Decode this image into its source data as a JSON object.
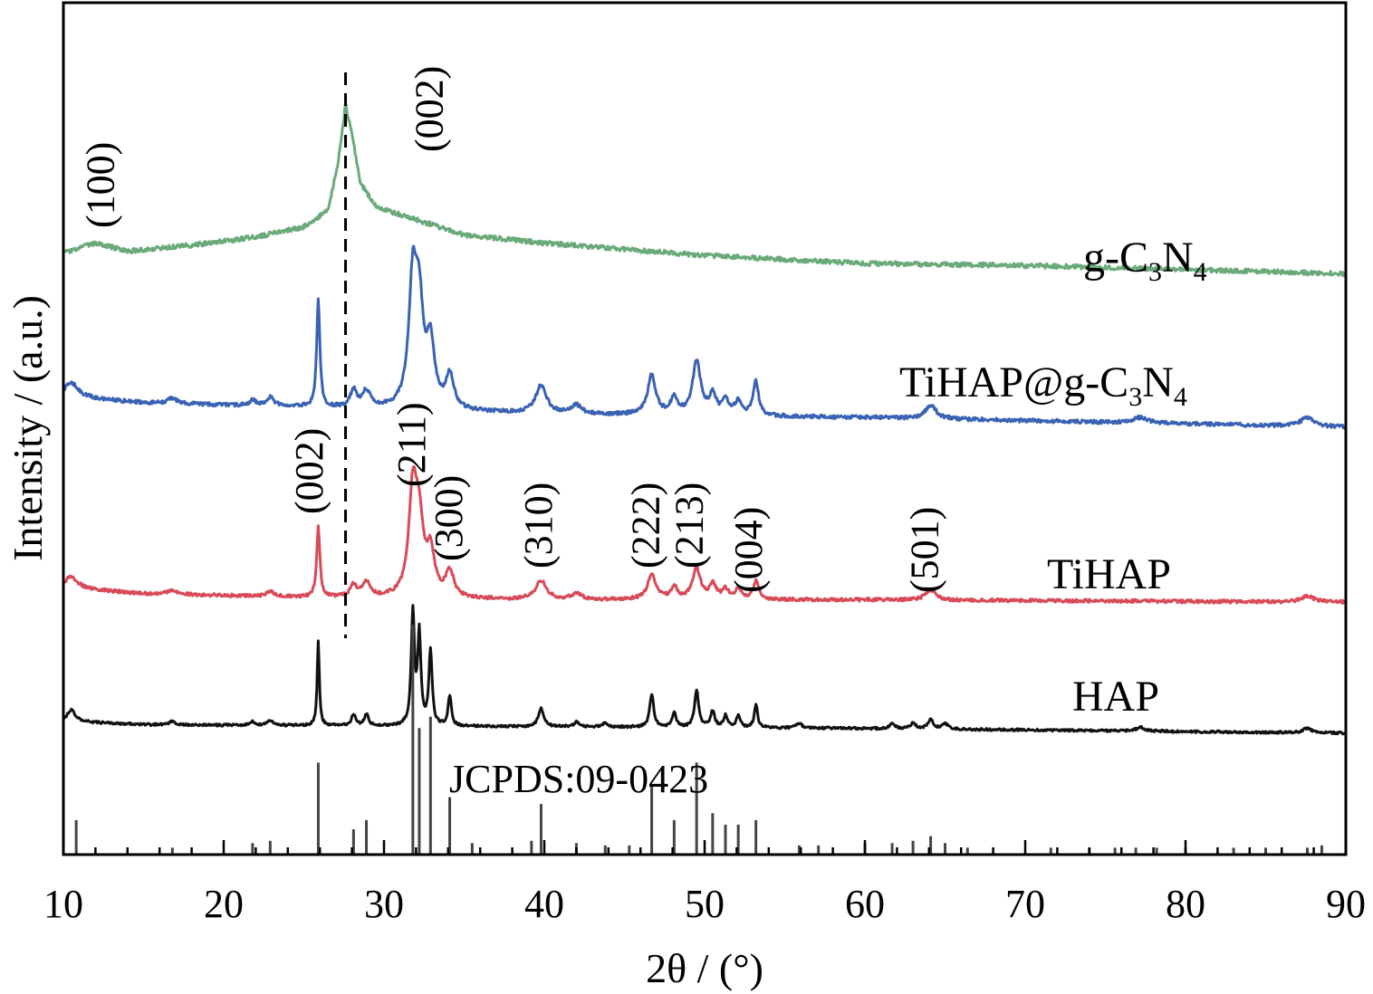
{
  "chart_data": {
    "type": "line",
    "xlabel": "2θ / (°)",
    "ylabel": "Intensity / (a.u.)",
    "xlim": [
      10,
      90
    ],
    "xticks": [
      "10",
      "20",
      "30",
      "40",
      "50",
      "60",
      "70",
      "80",
      "90"
    ],
    "grid": false,
    "dashed_reference_line_x": 27.6,
    "reference_pattern": {
      "label": "JCPDS:09-0423",
      "sticks": [
        {
          "x": 10.8,
          "h": 0.15
        },
        {
          "x": 16.8,
          "h": 0.03
        },
        {
          "x": 21.8,
          "h": 0.05
        },
        {
          "x": 22.9,
          "h": 0.06
        },
        {
          "x": 25.9,
          "h": 0.4
        },
        {
          "x": 28.1,
          "h": 0.11
        },
        {
          "x": 28.9,
          "h": 0.15
        },
        {
          "x": 31.8,
          "h": 1.0
        },
        {
          "x": 32.2,
          "h": 0.55
        },
        {
          "x": 32.9,
          "h": 0.6
        },
        {
          "x": 34.1,
          "h": 0.25
        },
        {
          "x": 35.5,
          "h": 0.05
        },
        {
          "x": 39.2,
          "h": 0.06
        },
        {
          "x": 39.8,
          "h": 0.22
        },
        {
          "x": 42.0,
          "h": 0.05
        },
        {
          "x": 43.8,
          "h": 0.04
        },
        {
          "x": 45.3,
          "h": 0.04
        },
        {
          "x": 46.7,
          "h": 0.3
        },
        {
          "x": 48.1,
          "h": 0.15
        },
        {
          "x": 49.5,
          "h": 0.4
        },
        {
          "x": 50.5,
          "h": 0.18
        },
        {
          "x": 51.3,
          "h": 0.13
        },
        {
          "x": 52.1,
          "h": 0.13
        },
        {
          "x": 53.2,
          "h": 0.15
        },
        {
          "x": 55.9,
          "h": 0.04
        },
        {
          "x": 57.1,
          "h": 0.04
        },
        {
          "x": 60.0,
          "h": 0.05
        },
        {
          "x": 61.7,
          "h": 0.05
        },
        {
          "x": 63.0,
          "h": 0.06
        },
        {
          "x": 64.1,
          "h": 0.08
        },
        {
          "x": 65.0,
          "h": 0.05
        },
        {
          "x": 66.4,
          "h": 0.03
        },
        {
          "x": 71.6,
          "h": 0.03
        },
        {
          "x": 74.0,
          "h": 0.03
        },
        {
          "x": 75.6,
          "h": 0.03
        },
        {
          "x": 76.9,
          "h": 0.03
        },
        {
          "x": 78.2,
          "h": 0.03
        },
        {
          "x": 80.0,
          "h": 0.03
        },
        {
          "x": 83.0,
          "h": 0.03
        },
        {
          "x": 85.0,
          "h": 0.03
        },
        {
          "x": 87.6,
          "h": 0.03
        },
        {
          "x": 88.5,
          "h": 0.04
        }
      ]
    },
    "series": [
      {
        "name": "g-C3N4",
        "label_main": "g-C",
        "label_sub1": "3",
        "label_mid": "N",
        "label_sub2": "4",
        "color": "#6aaa7a",
        "baseline": [
          [
            10,
            0.05
          ],
          [
            12,
            0.3
          ],
          [
            14,
            0.1
          ],
          [
            18,
            0.25
          ],
          [
            22,
            0.45
          ],
          [
            25,
            0.7
          ],
          [
            26.5,
            1.1
          ],
          [
            27.1,
            2.2
          ],
          [
            27.6,
            3.7
          ],
          [
            28.0,
            3.0
          ],
          [
            28.5,
            1.8
          ],
          [
            29.5,
            1.2
          ],
          [
            31,
            1.0
          ],
          [
            35,
            0.5
          ],
          [
            40,
            0.3
          ],
          [
            50,
            0.0
          ],
          [
            60,
            -0.2
          ],
          [
            70,
            -0.25
          ],
          [
            80,
            -0.35
          ],
          [
            90,
            -0.45
          ]
        ],
        "peaks": []
      },
      {
        "name": "TiHAP@g-C3N4",
        "label_main": "TiHAP@g-C",
        "label_sub1": "3",
        "label_mid": "N",
        "label_sub2": "4",
        "color": "#3a62b4",
        "baseline": [
          [
            10,
            0.2
          ],
          [
            15,
            0.08
          ],
          [
            25,
            0.0
          ],
          [
            40,
            -0.12
          ],
          [
            60,
            -0.18
          ],
          [
            90,
            -0.35
          ]
        ],
        "peaks": [
          [
            10.5,
            0.25,
            0.5
          ],
          [
            16.8,
            0.1,
            0.3
          ],
          [
            21.8,
            0.1,
            0.2
          ],
          [
            22.9,
            0.15,
            0.3
          ],
          [
            25.9,
            1.9,
            0.12
          ],
          [
            28.1,
            0.3,
            0.25
          ],
          [
            28.9,
            0.3,
            0.3
          ],
          [
            31.8,
            2.2,
            0.3
          ],
          [
            32.2,
            1.6,
            0.3
          ],
          [
            32.9,
            1.1,
            0.3
          ],
          [
            34.1,
            0.6,
            0.3
          ],
          [
            39.8,
            0.5,
            0.4
          ],
          [
            42.0,
            0.15,
            0.4
          ],
          [
            46.7,
            0.7,
            0.3
          ],
          [
            48.1,
            0.3,
            0.25
          ],
          [
            49.5,
            0.95,
            0.3
          ],
          [
            50.5,
            0.35,
            0.25
          ],
          [
            51.3,
            0.25,
            0.25
          ],
          [
            52.1,
            0.25,
            0.25
          ],
          [
            53.2,
            0.6,
            0.2
          ],
          [
            64.1,
            0.25,
            0.4
          ],
          [
            77.2,
            0.1,
            0.5
          ],
          [
            87.6,
            0.15,
            0.5
          ]
        ]
      },
      {
        "name": "TiHAP",
        "label_main": "TiHAP",
        "label_sub1": "",
        "label_mid": "",
        "label_sub2": "",
        "color": "#d84a58",
        "baseline": [
          [
            10,
            0.2
          ],
          [
            15,
            0.08
          ],
          [
            25,
            0.0
          ],
          [
            40,
            -0.05
          ],
          [
            60,
            -0.05
          ],
          [
            90,
            -0.1
          ]
        ],
        "peaks": [
          [
            10.5,
            0.25,
            0.5
          ],
          [
            16.8,
            0.1,
            0.3
          ],
          [
            22.9,
            0.12,
            0.3
          ],
          [
            25.9,
            1.5,
            0.12
          ],
          [
            28.1,
            0.25,
            0.25
          ],
          [
            28.9,
            0.3,
            0.3
          ],
          [
            31.8,
            2.2,
            0.3
          ],
          [
            32.2,
            1.4,
            0.3
          ],
          [
            32.9,
            0.9,
            0.3
          ],
          [
            34.1,
            0.55,
            0.3
          ],
          [
            39.8,
            0.4,
            0.4
          ],
          [
            42.0,
            0.12,
            0.4
          ],
          [
            46.7,
            0.55,
            0.3
          ],
          [
            48.1,
            0.25,
            0.25
          ],
          [
            49.5,
            0.65,
            0.3
          ],
          [
            50.5,
            0.3,
            0.25
          ],
          [
            51.3,
            0.2,
            0.25
          ],
          [
            52.1,
            0.2,
            0.25
          ],
          [
            53.2,
            0.4,
            0.2
          ],
          [
            64.1,
            0.2,
            0.4
          ],
          [
            87.6,
            0.12,
            0.5
          ]
        ]
      },
      {
        "name": "HAP",
        "label_main": "HAP",
        "label_sub1": "",
        "label_mid": "",
        "label_sub2": "",
        "color": "#111111",
        "baseline": [
          [
            10,
            0.1
          ],
          [
            15,
            0.03
          ],
          [
            30,
            0.0
          ],
          [
            60,
            -0.05
          ],
          [
            90,
            -0.15
          ]
        ],
        "peaks": [
          [
            10.5,
            0.25,
            0.3
          ],
          [
            16.8,
            0.08,
            0.2
          ],
          [
            21.8,
            0.08,
            0.15
          ],
          [
            22.9,
            0.1,
            0.2
          ],
          [
            25.9,
            1.8,
            0.08
          ],
          [
            28.1,
            0.25,
            0.15
          ],
          [
            28.9,
            0.25,
            0.15
          ],
          [
            31.8,
            2.4,
            0.12
          ],
          [
            32.2,
            1.9,
            0.12
          ],
          [
            32.9,
            1.6,
            0.12
          ],
          [
            34.1,
            0.65,
            0.12
          ],
          [
            39.8,
            0.4,
            0.2
          ],
          [
            42.0,
            0.1,
            0.2
          ],
          [
            43.8,
            0.08,
            0.2
          ],
          [
            46.7,
            0.7,
            0.15
          ],
          [
            48.1,
            0.3,
            0.15
          ],
          [
            49.5,
            0.8,
            0.15
          ],
          [
            50.5,
            0.35,
            0.15
          ],
          [
            51.3,
            0.25,
            0.15
          ],
          [
            52.1,
            0.25,
            0.15
          ],
          [
            53.2,
            0.5,
            0.12
          ],
          [
            55.9,
            0.1,
            0.2
          ],
          [
            61.7,
            0.1,
            0.2
          ],
          [
            63.0,
            0.12,
            0.2
          ],
          [
            64.1,
            0.2,
            0.2
          ],
          [
            65.0,
            0.12,
            0.2
          ],
          [
            77.2,
            0.08,
            0.3
          ],
          [
            87.6,
            0.1,
            0.3
          ]
        ]
      }
    ],
    "annotations": [
      {
        "text": "(100)",
        "x": 12.3,
        "series": "g-C3N4"
      },
      {
        "text": "(002)",
        "x": 32.8,
        "series": "g-C3N4"
      },
      {
        "text": "(002)",
        "x": 25.3,
        "series": "TiHAP"
      },
      {
        "text": "(211)",
        "x": 31.7,
        "series": "TiHAP"
      },
      {
        "text": "(300)",
        "x": 34.0,
        "series": "TiHAP"
      },
      {
        "text": "(310)",
        "x": 39.6,
        "series": "TiHAP"
      },
      {
        "text": "(222)",
        "x": 46.3,
        "series": "TiHAP"
      },
      {
        "text": "(213)",
        "x": 49.0,
        "series": "TiHAP"
      },
      {
        "text": "(004)",
        "x": 52.7,
        "series": "TiHAP"
      },
      {
        "text": "(501)",
        "x": 63.7,
        "series": "TiHAP"
      }
    ]
  }
}
